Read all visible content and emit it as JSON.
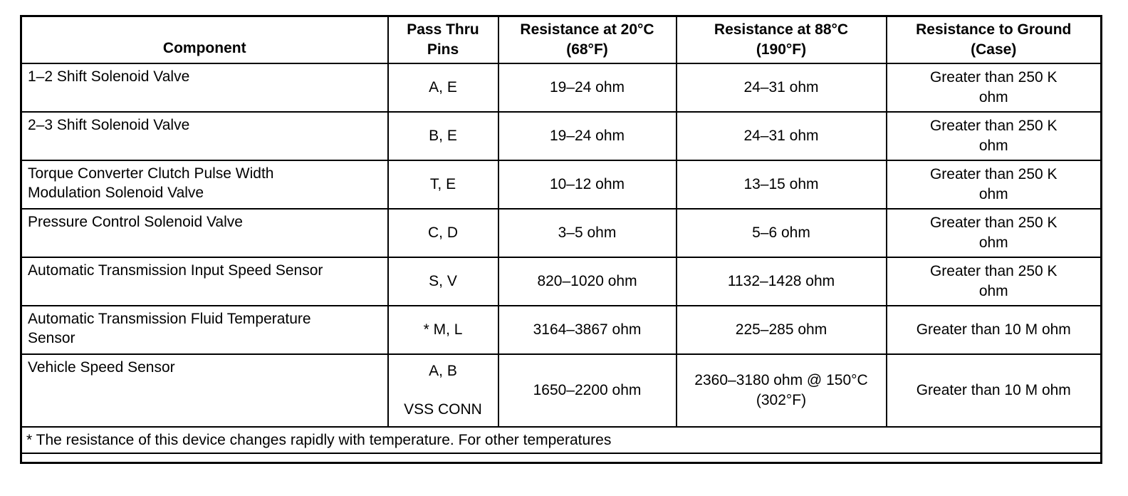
{
  "page": {
    "background_color": "#ffffff",
    "border_color": "#000000",
    "text_color": "#000000"
  },
  "table": {
    "headers": {
      "component": "Component",
      "pins": "Pass Thru\nPins",
      "r20": "Resistance at 20°C\n(68°F)",
      "r88": "Resistance at 88°C\n(190°F)",
      "ground": "Resistance to Ground\n(Case)"
    },
    "rows": [
      {
        "component": "1–2 Shift Solenoid Valve",
        "pins": "A, E",
        "r20": "19–24 ohm",
        "r88": "24–31 ohm",
        "ground": "Greater than 250 K\nohm"
      },
      {
        "component": "2–3 Shift Solenoid Valve",
        "pins": "B, E",
        "r20": "19–24 ohm",
        "r88": "24–31 ohm",
        "ground": "Greater than 250 K\nohm"
      },
      {
        "component": "Torque Converter Clutch Pulse Width\nModulation Solenoid Valve",
        "pins": "T, E",
        "r20": "10–12 ohm",
        "r88": "13–15 ohm",
        "ground": "Greater than 250 K\nohm"
      },
      {
        "component": "Pressure Control Solenoid Valve",
        "pins": "C, D",
        "r20": "3–5 ohm",
        "r88": "5–6 ohm",
        "ground": "Greater than 250 K\nohm"
      },
      {
        "component": "Automatic Transmission Input Speed Sensor",
        "pins": "S, V",
        "r20": "820–1020 ohm",
        "r88": "1132–1428 ohm",
        "ground": "Greater than 250 K\nohm"
      },
      {
        "component": "Automatic Transmission Fluid Temperature\nSensor",
        "pins": "* M, L",
        "r20": "3164–3867 ohm",
        "r88": "225–285 ohm",
        "ground": "Greater than 10 M ohm"
      },
      {
        "component": "Vehicle Speed Sensor",
        "pins": "A, B\n\nVSS CONN",
        "r20": "1650–2200 ohm",
        "r88": "2360–3180 ohm @ 150°C\n(302°F)",
        "ground": "Greater than 10 M ohm"
      }
    ],
    "footnote": "* The resistance of this device changes rapidly with temperature. For other temperatures"
  }
}
